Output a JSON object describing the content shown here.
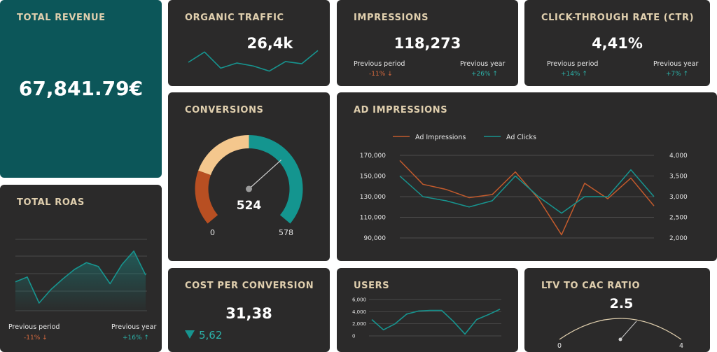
{
  "cards": {
    "revenue": {
      "title": "TOTAL REVENUE",
      "value": "67,841.79€"
    },
    "organic": {
      "title": "ORGANIC TRAFFIC",
      "value": "26,4k"
    },
    "impressions": {
      "title": "IMPRESSIONS",
      "value": "118,273",
      "prev_period_label": "Previous period",
      "prev_period_value": "-11% ↓",
      "prev_year_label": "Previous year",
      "prev_year_value": "+26% ↑"
    },
    "ctr": {
      "title": "CLICK-THROUGH RATE (CTR)",
      "value": "4,41%",
      "prev_period_label": "Previous period",
      "prev_period_value": "+14% ↑",
      "prev_year_label": "Previous year",
      "prev_year_value": "+7% ↑"
    },
    "conversions": {
      "title": "CONVERSIONS",
      "value": "524",
      "min_label": "0",
      "max_label": "578"
    },
    "ad_impressions": {
      "title": "AD IMPRESSIONS"
    },
    "roas": {
      "title": "TOTAL ROAS",
      "prev_period_label": "Previous period",
      "prev_period_value": "-11% ↓",
      "prev_year_label": "Previous year",
      "prev_year_value": "+16% ↑"
    },
    "cpc": {
      "title": "COST PER CONVERSION",
      "value": "31,38",
      "delta_icon": "triangle-down-icon",
      "delta_value": "5,62"
    },
    "users": {
      "title": "USERS"
    },
    "ltv": {
      "title": "LTV TO CAC RATIO",
      "value": "2.5",
      "min_label": "0",
      "max_label": "4"
    }
  },
  "colors": {
    "card_bg": "#2b2a2a",
    "teal_card": "#0c5659",
    "title": "#e0cfae",
    "orange": "#c25a2c",
    "teal": "#17948f",
    "negative": "#d96b3f",
    "positive": "#2cb3aa",
    "gauge_light": "#f4c78d",
    "gauge_orange": "#b84f22",
    "gauge_teal": "#14958f"
  },
  "chart_data": [
    {
      "id": "organic-traffic",
      "type": "line",
      "values": [
        1.0,
        2.4,
        0.2,
        0.9,
        0.5,
        -0.2,
        1.1,
        0.8,
        2.6
      ]
    },
    {
      "id": "ad-impressions",
      "type": "line",
      "title": "AD IMPRESSIONS",
      "series": [
        {
          "name": "Ad Impressions",
          "axis": "left",
          "color": "#c25a2c",
          "values": [
            165000,
            142000,
            137000,
            129000,
            132000,
            154000,
            128000,
            93000,
            143000,
            128000,
            148000,
            121000
          ]
        },
        {
          "name": "Ad Clicks",
          "axis": "right",
          "color": "#17948f",
          "values": [
            3500,
            3000,
            2900,
            2750,
            2900,
            3500,
            3000,
            2600,
            3000,
            3000,
            3650,
            3000
          ]
        }
      ],
      "left_ticks": [
        "170,000",
        "150,000",
        "130,000",
        "110,000",
        "90,000"
      ],
      "right_ticks": [
        "4,000",
        "3,500",
        "3,000",
        "2,500",
        "2,000"
      ],
      "ylim_left": [
        90000,
        170000
      ],
      "ylim_right": [
        2000,
        4000
      ],
      "legend": "top-left",
      "grid": true
    },
    {
      "id": "total-roas",
      "type": "area",
      "values": [
        3.0,
        3.5,
        0.8,
        2.2,
        3.3,
        4.3,
        5.0,
        4.6,
        2.8,
        4.8,
        6.2,
        3.7
      ],
      "grid": true
    },
    {
      "id": "users",
      "type": "line",
      "values": [
        2700,
        1000,
        2000,
        3600,
        4100,
        4200,
        4200,
        2400,
        300,
        2700,
        3500,
        4400
      ],
      "y_ticks": [
        "6,000",
        "4,000",
        "2,000",
        "0"
      ],
      "ylim": [
        0,
        6000
      ],
      "grid": true
    },
    {
      "id": "conversions-gauge",
      "type": "gauge",
      "min": 0,
      "max": 578,
      "value": 524
    },
    {
      "id": "ltv-gauge",
      "type": "gauge",
      "min": 0,
      "max": 4,
      "value": 2.5
    }
  ]
}
